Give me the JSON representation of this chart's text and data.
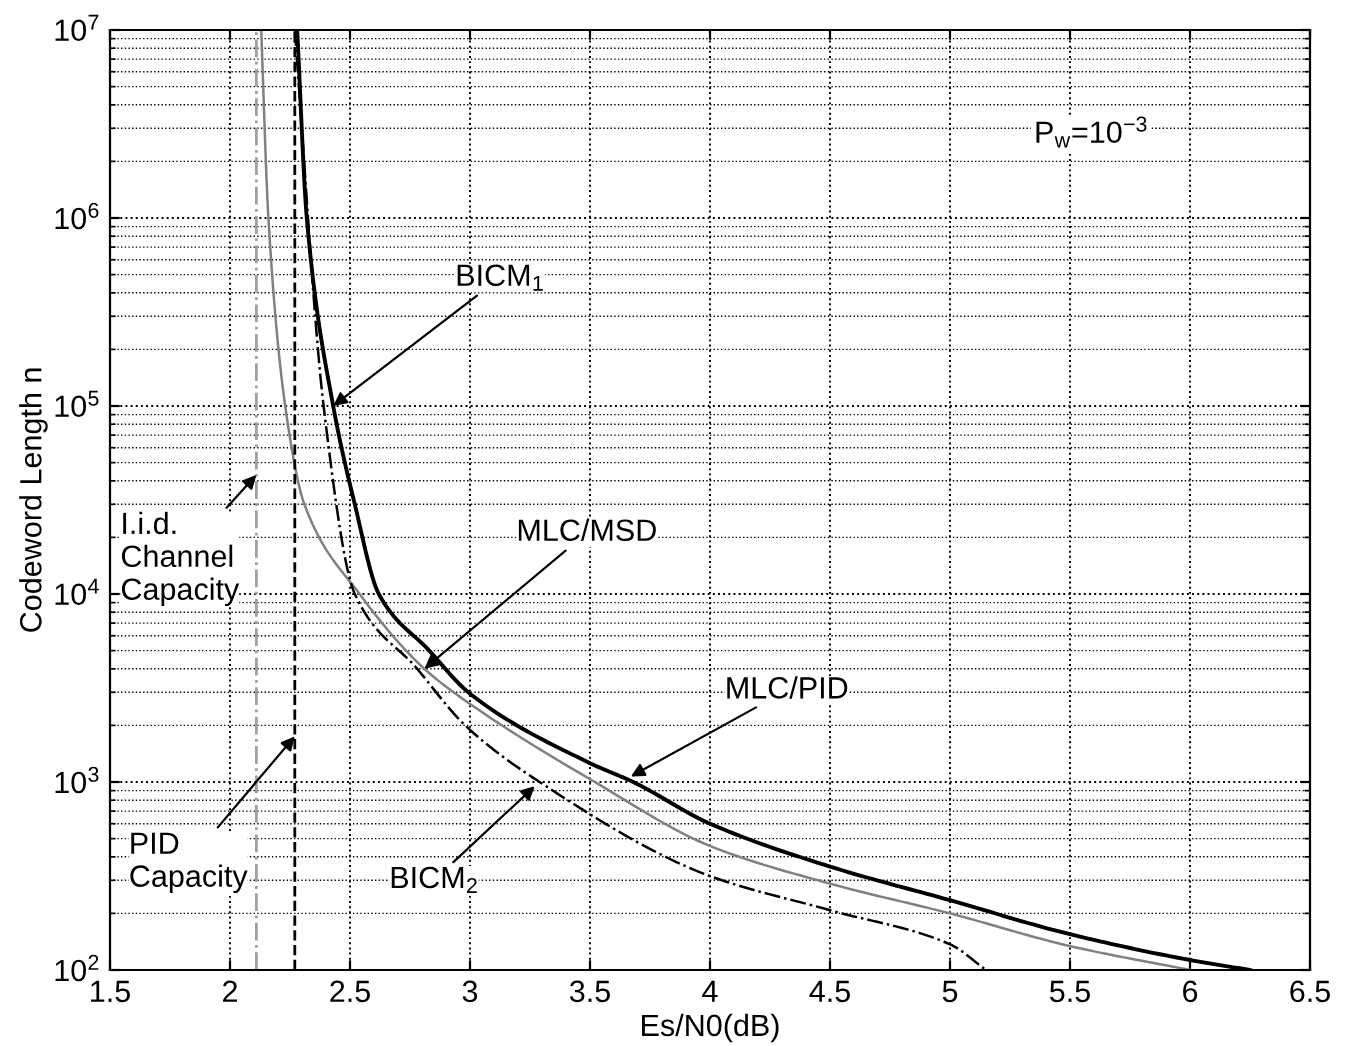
{
  "chart_data": {
    "type": "line",
    "xlabel": "Es/N0(dB)",
    "ylabel": "Codeword Length n",
    "log": "y",
    "grid": true,
    "xlim": [
      1.5,
      6.5
    ],
    "xticks": [
      1.5,
      2,
      2.5,
      3,
      3.5,
      4,
      4.5,
      5,
      5.5,
      6,
      6.5
    ],
    "ylim": [
      100,
      10000000
    ],
    "yticks": [
      {
        "value": 100,
        "label": "10$^{2}$"
      },
      {
        "value": 1000,
        "label": "10$^{3}$"
      },
      {
        "value": 10000,
        "label": "10$^{4}$"
      },
      {
        "value": 100000,
        "label": "10$^{5}$"
      },
      {
        "value": 1000000,
        "label": "10$^{6}$"
      },
      {
        "value": 10000000,
        "label": "10$^{7}$"
      }
    ],
    "series": [
      {
        "color": "#000000",
        "line_style": "solid",
        "x": [
          2.28,
          2.32,
          2.43,
          2.52,
          2.62,
          2.83,
          3.0,
          3.5,
          3.68,
          4.0,
          4.5,
          5.0,
          5.5,
          6.0,
          6.25
        ],
        "values": [
          10000000,
          1000000,
          100000,
          30000,
          10000,
          5000,
          2950,
          1260,
          1000,
          600,
          355,
          235,
          155,
          113,
          100
        ]
      },
      {
        "color": "#808080",
        "line_style": "solid",
        "x": [
          2.13,
          2.16,
          2.23,
          2.31,
          2.54,
          2.81,
          3.02,
          3.52,
          4.0,
          4.5,
          5.0,
          5.5,
          6.0
        ],
        "values": [
          10000000,
          1000000,
          100000,
          30000,
          10000,
          4000,
          2500,
          1000,
          457,
          288,
          200,
          134,
          100
        ]
      },
      {
        "color": "#000000",
        "line_style": "dashdot",
        "x": [
          2.27,
          2.39,
          2.52,
          2.78,
          2.98,
          3.29,
          4.0,
          4.5,
          5.0,
          5.15
        ],
        "values": [
          10000000,
          100000,
          10000,
          4000,
          2000,
          1000,
          316,
          208,
          137,
          100
        ]
      }
    ],
    "ref_lines": [
      {
        "axis": "x",
        "value": 2.11,
        "color": "#a0a0a0",
        "line_style": "dashdot"
      },
      {
        "axis": "x",
        "value": 2.27,
        "color": "#000000",
        "line_style": "dashed"
      }
    ],
    "annotations": [
      {
        "text": "BICM$_{1}$",
        "x": 2.43,
        "y": 100000
      },
      {
        "text": "MLC/MSD",
        "x": 2.81,
        "y": 4000
      },
      {
        "text": "MLC/PID",
        "x": 3.67,
        "y": 1070
      },
      {
        "text": "BICM$_{2}$",
        "x": 3.27,
        "y": 950
      },
      {
        "text": "I.i.d.\nChannel\nCapacity",
        "x": 2.11,
        "y": 43000
      },
      {
        "text": "PID\nCapacity",
        "x": 2.27,
        "y": 1750
      },
      "P$_{w}$=10$^{−3}$"
    ]
  }
}
